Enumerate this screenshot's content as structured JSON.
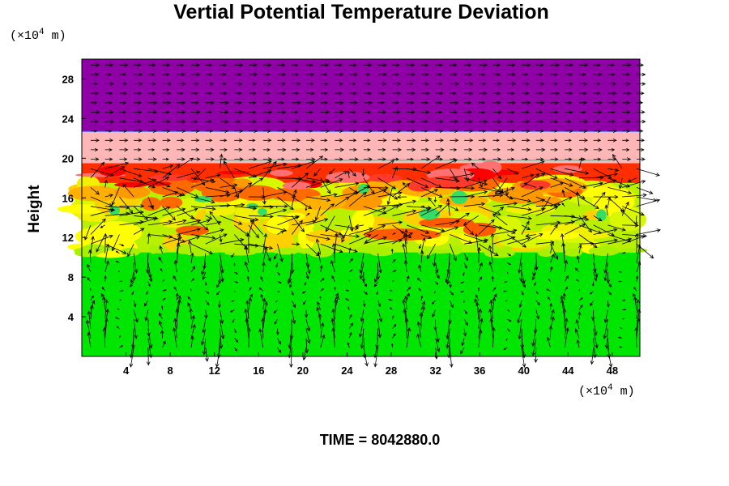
{
  "chart_data": {
    "type": "heatmap",
    "title": "Vertial Potential Temperature Deviation",
    "xlabel": "",
    "ylabel": "Height",
    "x_unit_prefix": "(×10",
    "x_unit_exp": "4",
    "x_unit_suffix": " m)",
    "y_unit_prefix": "(×10",
    "y_unit_exp": "4",
    "y_unit_suffix": " m)",
    "xlim": [
      0,
      50.5
    ],
    "ylim": [
      0,
      30
    ],
    "xticks": [
      4,
      8,
      12,
      16,
      20,
      24,
      28,
      32,
      36,
      40,
      44,
      48
    ],
    "yticks": [
      4,
      8,
      12,
      16,
      20,
      24,
      28
    ],
    "time_label": "TIME = 8042880.0",
    "layers": [
      {
        "name": "lower",
        "y_from": 0,
        "y_to": 10.5,
        "color": "#00e600"
      },
      {
        "name": "mid",
        "y_from": 10.5,
        "y_to": 17.5,
        "color": "#b8f000"
      },
      {
        "name": "red-band",
        "y_from": 17.5,
        "y_to": 19.5,
        "color": "#ff2e00"
      },
      {
        "name": "pink",
        "y_from": 19.5,
        "y_to": 22.7,
        "color": "#ffb6b6"
      },
      {
        "name": "top",
        "y_from": 22.7,
        "y_to": 30,
        "color": "#8f00a6"
      }
    ],
    "arrow_grid": {
      "dx": 1.3,
      "dy": 0.95,
      "max_len": 2.2
    }
  }
}
